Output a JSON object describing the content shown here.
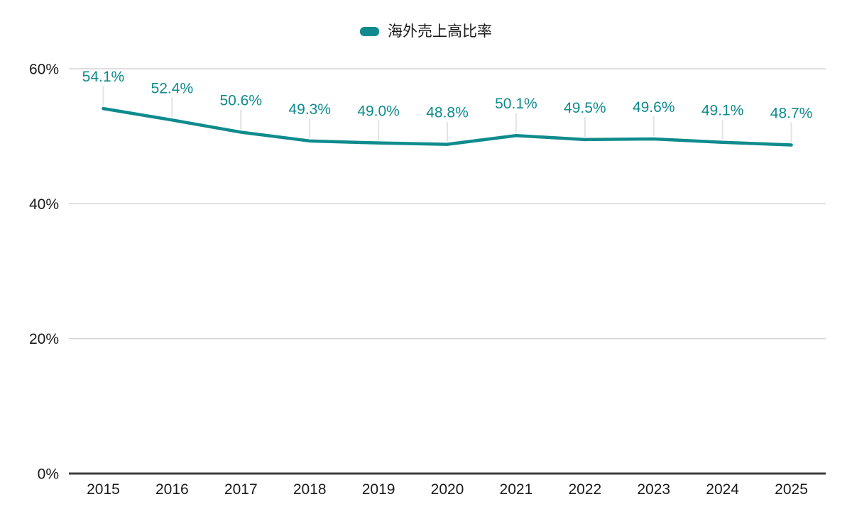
{
  "legend": {
    "label": "海外売上高比率"
  },
  "chart_data": {
    "type": "line",
    "title": "",
    "xlabel": "",
    "ylabel": "",
    "categories": [
      "2015",
      "2016",
      "2017",
      "2018",
      "2019",
      "2020",
      "2021",
      "2022",
      "2023",
      "2024",
      "2025"
    ],
    "series": [
      {
        "name": "海外売上高比率",
        "values": [
          54.1,
          52.4,
          50.6,
          49.3,
          49.0,
          48.8,
          50.1,
          49.5,
          49.6,
          49.1,
          48.7
        ]
      }
    ],
    "data_labels": [
      "54.1%",
      "52.4%",
      "50.6%",
      "49.3%",
      "49.0%",
      "48.8%",
      "50.1%",
      "49.5%",
      "49.6%",
      "49.1%",
      "48.7%"
    ],
    "ylim": [
      0,
      60
    ],
    "yticks": [
      0,
      20,
      40,
      60
    ],
    "ytick_labels": [
      "0%",
      "20%",
      "40%",
      "60%"
    ],
    "grid": true,
    "legend_position": "top-center",
    "colors": {
      "line": "#0f8b8d",
      "data_label": "#0f8b8d",
      "grid": "#d6d6d6",
      "axis": "#3d3d3d",
      "tick_label": "#1a1a1a",
      "callout": "#e3e3e3",
      "background": "#ffffff"
    }
  }
}
